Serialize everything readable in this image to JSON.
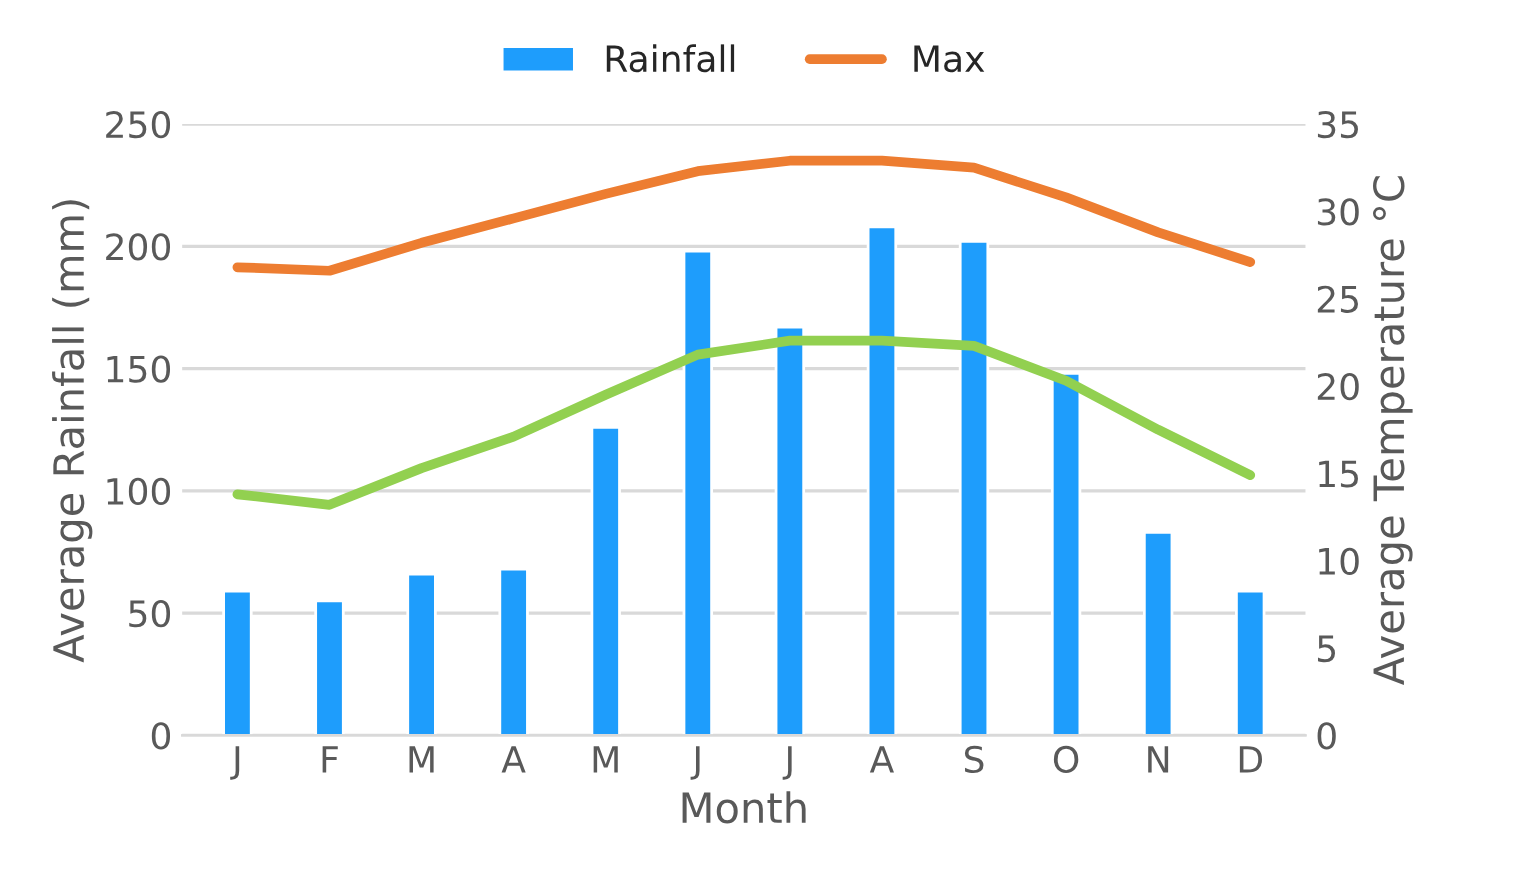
{
  "chart_data": {
    "type": "bar",
    "xlabel": "Month",
    "ylabel": "Average Rainfall (mm)",
    "y2label": "Average Temperature °C",
    "categories": [
      "J",
      "F",
      "M",
      "A",
      "M",
      "J",
      "J",
      "A",
      "S",
      "O",
      "N",
      "D"
    ],
    "series": [
      {
        "name": "Rainfall",
        "color": "#1e9dfc",
        "values": [
          59,
          55,
          66,
          68,
          126,
          198,
          167,
          208,
          202,
          148,
          83,
          59
        ]
      },
      {
        "name": "Max",
        "type": "line",
        "axis": "y2",
        "color": "#ed7d31",
        "values": [
          26.8,
          26.6,
          28.2,
          29.6,
          31.0,
          32.3,
          32.9,
          32.9,
          32.5,
          30.8,
          28.8,
          27.1
        ]
      },
      {
        "type": "line",
        "axis": "y2",
        "color": "#92d050",
        "values": [
          13.8,
          13.2,
          15.3,
          17.1,
          19.5,
          21.8,
          22.6,
          22.6,
          22.3,
          20.3,
          17.5,
          14.9
        ]
      }
    ],
    "ylim": [
      0,
      250
    ],
    "yticks": [
      0,
      50,
      100,
      150,
      200,
      250
    ],
    "y2lim": [
      0,
      35
    ],
    "y2ticks": [
      0,
      5,
      10,
      15,
      20,
      25,
      30,
      35
    ],
    "grid": "y",
    "legend": "top",
    "marker": "none",
    "line_style": "solid"
  }
}
